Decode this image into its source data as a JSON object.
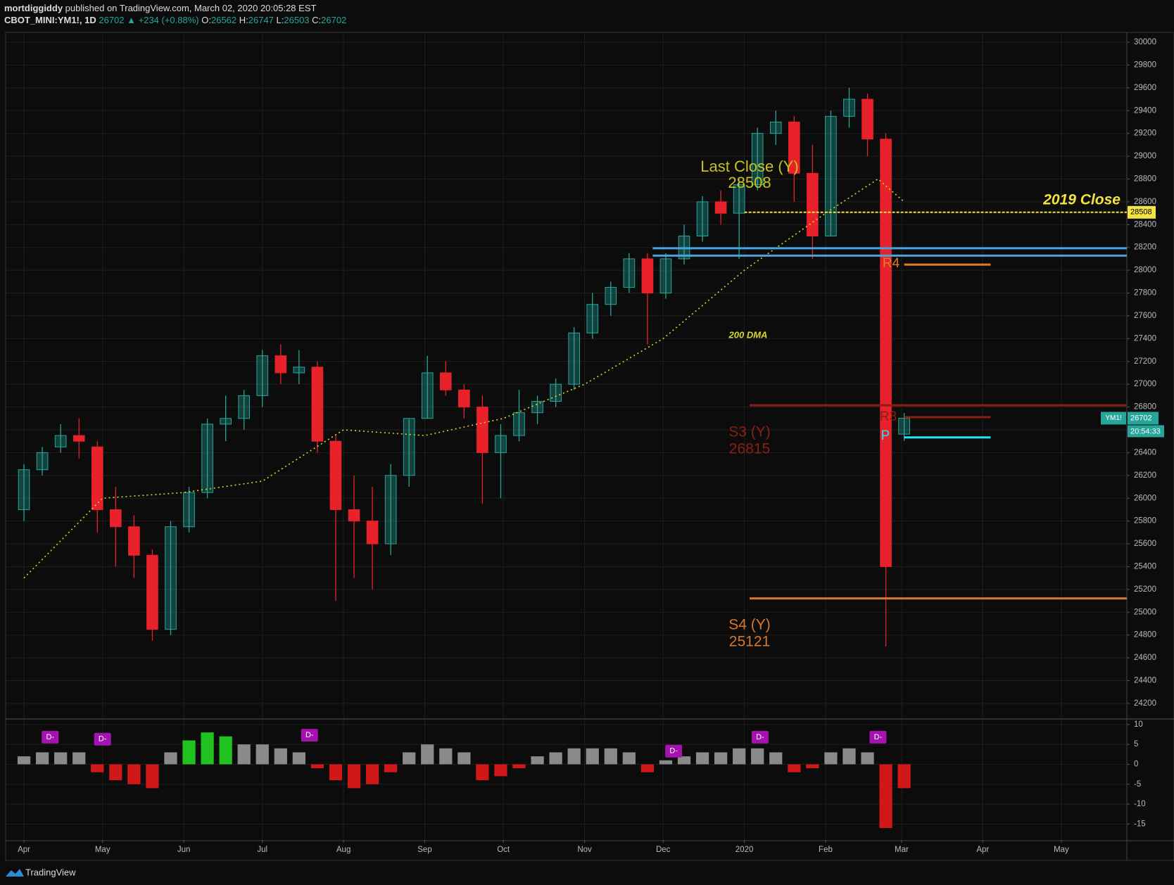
{
  "chart_data": {
    "type": "candlestick",
    "header": {
      "author": "mortdiggiddy",
      "published": "published on TradingView.com, March 02, 2020 20:05:28 EST",
      "symbol": "CBOT_MINI:YM1!, 1D",
      "last": 26702,
      "change": "▲ +234 (+0.88%)",
      "ohlc": [
        {
          "label": "O:",
          "value": 26562
        },
        {
          "label": "H:",
          "value": 26747
        },
        {
          "label": "L:",
          "value": 26503
        },
        {
          "label": "C:",
          "value": 26702
        }
      ]
    },
    "ticker": "YM1!",
    "countdown": "20:54:33",
    "brand": "TradingView",
    "up_color": "#26a69a",
    "down_color": "#e8212a",
    "grid": true,
    "xlim": [
      -7,
      421
    ],
    "xticks": [
      {
        "value": 0,
        "label": "Apr"
      },
      {
        "value": 30,
        "label": "May"
      },
      {
        "value": 61,
        "label": "Jun"
      },
      {
        "value": 91,
        "label": "Jul"
      },
      {
        "value": 122,
        "label": "Aug"
      },
      {
        "value": 153,
        "label": "Sep"
      },
      {
        "value": 183,
        "label": "Oct"
      },
      {
        "value": 214,
        "label": "Nov"
      },
      {
        "value": 244,
        "label": "Dec"
      },
      {
        "value": 275,
        "label": "2020"
      },
      {
        "value": 306,
        "label": "Feb"
      },
      {
        "value": 335,
        "label": "Mar"
      },
      {
        "value": 366,
        "label": "Apr"
      },
      {
        "value": 396,
        "label": "May"
      }
    ],
    "ylim": [
      24070,
      30074
    ],
    "yticks": [
      24200,
      24400,
      24600,
      24800,
      25000,
      25200,
      25400,
      25600,
      25800,
      26000,
      26200,
      26400,
      26600,
      26800,
      27000,
      27200,
      27400,
      27600,
      27800,
      28000,
      28200,
      28400,
      28600,
      28800,
      29000,
      29200,
      29400,
      29600,
      29800,
      30000
    ],
    "candles": {
      "x": [
        0,
        7,
        14,
        21,
        28,
        35,
        42,
        49,
        56,
        63,
        70,
        77,
        84,
        91,
        98,
        105,
        112,
        119,
        126,
        133,
        140,
        147,
        154,
        161,
        168,
        175,
        182,
        189,
        196,
        203,
        210,
        217,
        224,
        231,
        238,
        245,
        252,
        259,
        266,
        273,
        280,
        287,
        294,
        301,
        308,
        315,
        322,
        329,
        336
      ],
      "open": [
        25900,
        26250,
        26450,
        26550,
        26450,
        25900,
        25750,
        25500,
        24850,
        25750,
        26050,
        26650,
        26700,
        26900,
        27250,
        27100,
        27150,
        26500,
        25900,
        25800,
        25600,
        26200,
        26700,
        27100,
        26950,
        26800,
        26400,
        26550,
        26750,
        26850,
        27000,
        27450,
        27700,
        27850,
        28100,
        27800,
        28100,
        28300,
        28600,
        28500,
        28750,
        29200,
        29300,
        28850,
        28300,
        29350,
        29500,
        29150,
        26562
      ],
      "high": [
        26300,
        26450,
        26650,
        26700,
        26500,
        26100,
        25850,
        25550,
        25800,
        26100,
        26700,
        26900,
        26950,
        27300,
        27350,
        27300,
        27200,
        26550,
        26200,
        26100,
        26300,
        26700,
        27250,
        27200,
        27000,
        26900,
        26650,
        26950,
        26900,
        27050,
        27500,
        27800,
        27900,
        28150,
        28150,
        28150,
        28400,
        28650,
        28700,
        28800,
        29250,
        29400,
        29350,
        29100,
        29400,
        29600,
        29550,
        29200,
        26747
      ],
      "low": [
        25800,
        26200,
        26400,
        26350,
        25700,
        25400,
        25300,
        24750,
        24800,
        25700,
        26000,
        26500,
        26600,
        26800,
        27000,
        27000,
        26400,
        25100,
        25300,
        25200,
        25500,
        26100,
        26700,
        26900,
        26700,
        25950,
        26000,
        26500,
        26650,
        26800,
        26950,
        27400,
        27600,
        27800,
        27350,
        27750,
        28050,
        28250,
        28400,
        28100,
        28700,
        29100,
        28600,
        28100,
        28300,
        29250,
        29000,
        24700,
        26503
      ],
      "close": [
        26250,
        26400,
        26550,
        26500,
        25900,
        25750,
        25500,
        24850,
        25750,
        26050,
        26650,
        26700,
        26900,
        27250,
        27100,
        27150,
        26500,
        25900,
        25800,
        25600,
        26200,
        26700,
        27100,
        26950,
        26800,
        26400,
        26550,
        26750,
        26850,
        27000,
        27450,
        27700,
        27850,
        28100,
        27800,
        28100,
        28300,
        28600,
        28500,
        28750,
        29200,
        29300,
        28850,
        28300,
        29350,
        29500,
        29150,
        25400,
        26702
      ]
    },
    "ma": {
      "name": "200 DMA",
      "color": "#d9d92a",
      "x": [
        0,
        30,
        61,
        91,
        122,
        153,
        183,
        214,
        244,
        275,
        306,
        326,
        336
      ],
      "values": [
        25300,
        26000,
        26050,
        26150,
        26600,
        26550,
        26700,
        27000,
        27400,
        28000,
        28500,
        28800,
        28600
      ]
    },
    "levels": [
      {
        "name": "2019 Close",
        "value": 28508,
        "color": "#f2e340",
        "start": 275,
        "end": 421
      },
      {
        "value": 28193,
        "color": "#4aa3df",
        "start": 240,
        "end": 421
      },
      {
        "value": 28128,
        "color": "#4aa3df",
        "start": 240,
        "end": 421
      },
      {
        "name": "R4",
        "value": 28049,
        "color": "#e07b24",
        "start": 336,
        "end": 369
      },
      {
        "name": "S3 (Y)",
        "value": 26815,
        "color": "#8b1f12",
        "start": 277,
        "end": 421
      },
      {
        "name": "R3",
        "value": 26711,
        "color": "#8b1f12",
        "start": 336,
        "end": 369
      },
      {
        "name": "P",
        "value": 26534,
        "color": "#1ee6f5",
        "start": 336,
        "end": 369
      },
      {
        "name": "S4 (Y)",
        "value": 25121,
        "color": "#d9772b",
        "start": 277,
        "end": 421
      }
    ],
    "last_close": {
      "name": "Last Close (Y)",
      "value": 28508,
      "color": "#c9c21c"
    },
    "oscillator": {
      "ylim": [
        -19,
        11.2
      ],
      "yticks": [
        10,
        5,
        0,
        -5,
        -10,
        -15
      ],
      "pos_color": "#8a8a8a",
      "strong_color": "#1fc21f",
      "neg_color": "#d01818",
      "values": [
        2,
        3,
        3,
        3,
        -2,
        -4,
        -5,
        -6,
        3,
        6,
        8,
        7,
        5,
        5,
        4,
        3,
        -1,
        -4,
        -6,
        -5,
        -2,
        3,
        5,
        4,
        3,
        -4,
        -3,
        -1,
        2,
        3,
        4,
        4,
        4,
        3,
        -2,
        1,
        2,
        3,
        3,
        4,
        4,
        3,
        -2,
        -1,
        3,
        4,
        3,
        -16,
        -6
      ],
      "signals": [
        {
          "x": 10,
          "value": 4.5,
          "label": "D-"
        },
        {
          "x": 30,
          "value": 4,
          "label": "D-"
        },
        {
          "x": 109,
          "value": 5,
          "label": "D-"
        },
        {
          "x": 248,
          "value": 1,
          "label": "D-"
        },
        {
          "x": 281,
          "value": 4.5,
          "label": "D-"
        },
        {
          "x": 326,
          "value": 4.5,
          "label": "D-"
        }
      ],
      "signal_color": "#a412b0"
    }
  }
}
